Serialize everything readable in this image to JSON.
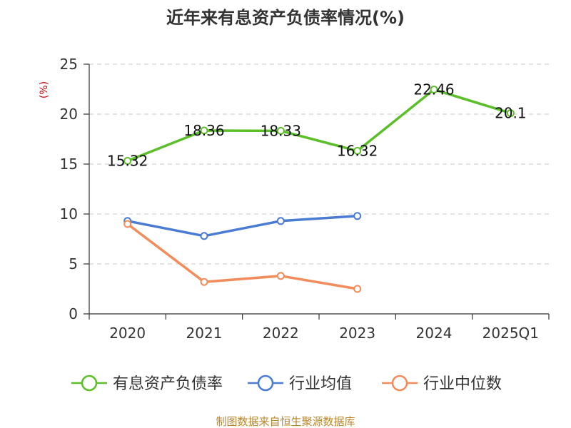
{
  "chart_data": {
    "type": "line",
    "title": "近年来有息资产负债率情况(%)",
    "ylabel": "(%)",
    "categories": [
      "2020",
      "2021",
      "2022",
      "2023",
      "2024",
      "2025Q1"
    ],
    "ylim": [
      0,
      25
    ],
    "yticks": [
      0,
      5,
      10,
      15,
      20,
      25
    ],
    "grid": true,
    "legend_position": "bottom",
    "series": [
      {
        "name": "有息资产负债率",
        "color": "#5cbf2a",
        "values": [
          15.32,
          18.36,
          18.33,
          16.32,
          22.46,
          20.1
        ],
        "labels": [
          "15.32",
          "18.36",
          "18.33",
          "16.32",
          "22.46",
          "20.1"
        ]
      },
      {
        "name": "行业均值",
        "color": "#4a7cd4",
        "values": [
          9.3,
          7.8,
          9.3,
          9.8,
          null,
          null
        ]
      },
      {
        "name": "行业中位数",
        "color": "#f28c5a",
        "values": [
          9.0,
          3.2,
          3.8,
          2.5,
          null,
          null
        ]
      }
    ]
  },
  "source": "制图数据来自恒生聚源数据库"
}
